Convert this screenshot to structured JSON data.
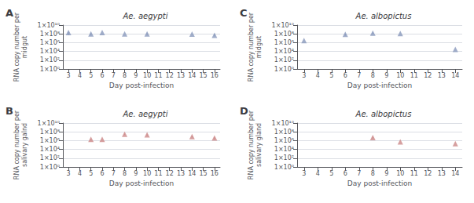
{
  "chart_data": [
    {
      "type": "scatter",
      "title": "Ae. aegypti",
      "annotations": [
        "A"
      ],
      "xlabel": "Day post-infection",
      "ylabel": "RNA copy number per\nmidgut",
      "x": [
        3,
        5,
        6,
        8,
        10,
        14,
        16
      ],
      "values": [
        200000000.0,
        100000000.0,
        200000000.0,
        100000000.0,
        100000000.0,
        90000000.0,
        50000000.0
      ],
      "error_low": [
        150000000.0,
        50000000.0,
        0,
        0,
        40000000.0,
        0,
        20000000.0
      ],
      "error_high": [
        100000000.0,
        40000000.0,
        0,
        0,
        50000000.0,
        0,
        40000000.0
      ],
      "color": "#8899bb",
      "marker": "triangle",
      "log": "y",
      "grid": true,
      "xlim": [
        2.5,
        16.5
      ],
      "xticks": [
        3,
        4,
        5,
        6,
        7,
        8,
        9,
        10,
        11,
        12,
        13,
        14,
        15,
        16
      ],
      "ylim": [
        1,
        10000000000.0
      ],
      "yticks": [
        {
          "value": 1,
          "label": "1×10⁰"
        },
        {
          "value": 100,
          "label": "1×10²"
        },
        {
          "value": 10000,
          "label": "1×10⁴"
        },
        {
          "value": 1000000,
          "label": "1×10⁶"
        },
        {
          "value": 100000000,
          "label": "1×10⁸"
        },
        {
          "value": 10000000000,
          "label": "1×10¹⁰"
        }
      ]
    },
    {
      "type": "scatter",
      "title": "Ae. aegypti",
      "annotations": [
        "B"
      ],
      "xlabel": "Day post-infection",
      "ylabel": "RNA copy number per\nsalivary galnd",
      "x": [
        5,
        6,
        8,
        10,
        14,
        16
      ],
      "values": [
        2000000.0,
        2000000.0,
        30000000.0,
        20000000.0,
        8000000.0,
        4000000.0
      ],
      "error_low": [
        500000.0,
        300000.0,
        8000000.0,
        7000000.0,
        3000000.0,
        2000000.0
      ],
      "error_high": [
        300000.0,
        200000.0,
        8000000.0,
        7000000.0,
        3000000.0,
        2000000.0
      ],
      "color": "#cc8888",
      "marker": "triangle",
      "log": "y",
      "grid": true,
      "xlim": [
        2.5,
        16.5
      ],
      "xticks": [
        3,
        4,
        5,
        6,
        7,
        8,
        9,
        10,
        11,
        12,
        13,
        14,
        15,
        16
      ],
      "ylim": [
        1,
        10000000000.0
      ],
      "yticks": [
        {
          "value": 1,
          "label": "1×10⁰"
        },
        {
          "value": 100,
          "label": "1×10²"
        },
        {
          "value": 10000,
          "label": "1×10⁴"
        },
        {
          "value": 1000000,
          "label": "1×10⁶"
        },
        {
          "value": 100000000,
          "label": "1×10⁸"
        },
        {
          "value": 10000000000,
          "label": "1×10¹⁰"
        }
      ]
    },
    {
      "type": "scatter",
      "title": "Ae. albopictus",
      "annotations": [
        "C"
      ],
      "xlabel": "Day post-infection",
      "ylabel": "RNA copy number per\nmidgut",
      "x": [
        3,
        6,
        8,
        10,
        14
      ],
      "values": [
        3000000.0,
        80000000.0,
        150000000.0,
        120000000.0,
        30000.0
      ],
      "error_low": [
        0,
        40000000.0,
        60000000.0,
        0,
        0
      ],
      "error_high": [
        0,
        30000000.0,
        50000000.0,
        0,
        0
      ],
      "color": "#8899bb",
      "marker": "triangle",
      "log": "y",
      "grid": true,
      "xlim": [
        2.5,
        14.5
      ],
      "xticks": [
        3,
        4,
        5,
        6,
        7,
        8,
        9,
        10,
        11,
        12,
        13,
        14
      ],
      "ylim": [
        1,
        10000000000.0
      ],
      "yticks": [
        {
          "value": 1,
          "label": "1×10⁰"
        },
        {
          "value": 100,
          "label": "1×10²"
        },
        {
          "value": 10000,
          "label": "1×10⁴"
        },
        {
          "value": 1000000,
          "label": "1×10⁶"
        },
        {
          "value": 100000000,
          "label": "1×10⁸"
        },
        {
          "value": 10000000000,
          "label": "1×10¹⁰"
        }
      ]
    },
    {
      "type": "scatter",
      "title": "Ae. albopictus",
      "annotations": [
        "D"
      ],
      "xlabel": "Day post-infection",
      "ylabel": "RNA copy number per\nsalivary gland",
      "x": [
        8,
        10,
        14
      ],
      "values": [
        5000000.0,
        500000.0,
        200000.0
      ],
      "error_low": [
        2000000.0,
        0,
        0
      ],
      "error_high": [
        2000000.0,
        0,
        0
      ],
      "color": "#cc8888",
      "marker": "triangle",
      "log": "y",
      "grid": true,
      "xlim": [
        2.5,
        14.5
      ],
      "xticks": [
        3,
        4,
        5,
        6,
        7,
        8,
        9,
        10,
        11,
        12,
        13,
        14
      ],
      "ylim": [
        1,
        10000000000.0
      ],
      "yticks": [
        {
          "value": 1,
          "label": "1×10⁰"
        },
        {
          "value": 100,
          "label": "1×10²"
        },
        {
          "value": 10000,
          "label": "1×10⁴"
        },
        {
          "value": 1000000,
          "label": "1×10⁶"
        },
        {
          "value": 100000000,
          "label": "1×10⁸"
        },
        {
          "value": 10000000000,
          "label": "1×10¹⁰"
        }
      ]
    }
  ]
}
